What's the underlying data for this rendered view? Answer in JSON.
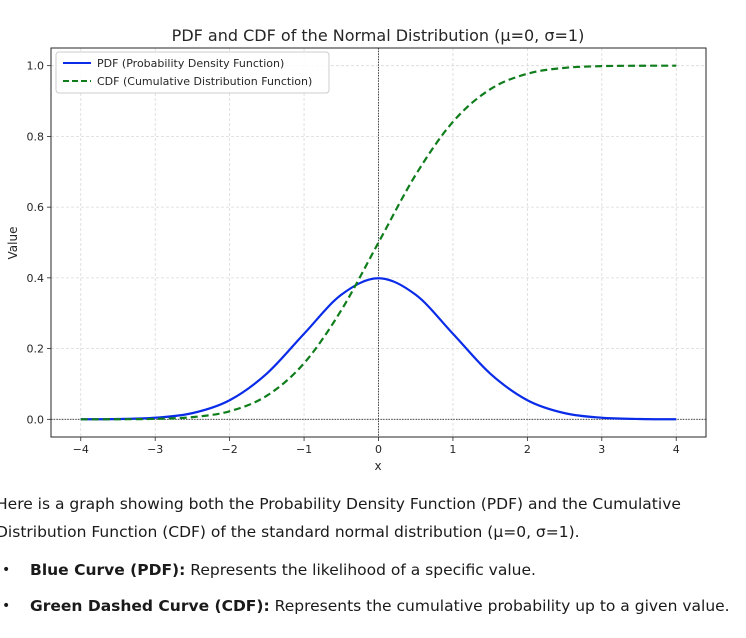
{
  "chart_data": {
    "type": "line",
    "title": "PDF and CDF of the Normal Distribution (μ=0, σ=1)",
    "xlabel": "x",
    "ylabel": "Value",
    "xlim": [
      -4.4,
      4.4
    ],
    "ylim": [
      -0.05,
      1.05
    ],
    "x_ticks": [
      -4,
      -3,
      -2,
      -1,
      0,
      1,
      2,
      3,
      4
    ],
    "x_tick_labels": [
      "−4",
      "−3",
      "−2",
      "−1",
      "0",
      "1",
      "2",
      "3",
      "4"
    ],
    "y_ticks": [
      0.0,
      0.2,
      0.4,
      0.6,
      0.8,
      1.0
    ],
    "y_tick_labels": [
      "0.0",
      "0.2",
      "0.4",
      "0.6",
      "0.8",
      "1.0"
    ],
    "grid": true,
    "legend_position": "top-left",
    "reference_lines": {
      "vertical_at_x": 0,
      "horizontal_at_y": 0
    },
    "x": [
      -4,
      -3.5,
      -3,
      -2.5,
      -2,
      -1.5,
      -1,
      -0.5,
      0,
      0.5,
      1,
      1.5,
      2,
      2.5,
      3,
      3.5,
      4
    ],
    "series": [
      {
        "name": "PDF (Probability Density Function)",
        "color": "#0a2ce8",
        "style": "solid",
        "values": [
          0.0001,
          0.0009,
          0.0044,
          0.0175,
          0.054,
          0.1295,
          0.242,
          0.3521,
          0.3989,
          0.3521,
          0.242,
          0.1295,
          0.054,
          0.0175,
          0.0044,
          0.0009,
          0.0001
        ]
      },
      {
        "name": "CDF (Cumulative Distribution Function)",
        "color": "#0f7d1c",
        "style": "dashed",
        "values": [
          0.0,
          0.0002,
          0.0013,
          0.0062,
          0.0228,
          0.0668,
          0.1587,
          0.3085,
          0.5,
          0.6915,
          0.8413,
          0.9332,
          0.9772,
          0.9938,
          0.9987,
          0.9998,
          1.0
        ]
      }
    ]
  },
  "answer": {
    "intro": "Here is a graph showing both the Probability Density Function (PDF) and the Cumulative Distribution Function (CDF) of the standard normal distribution (μ=0, σ=1).",
    "bullets": [
      {
        "term": "Blue Curve (PDF):",
        "text": " Represents the likelihood of a specific value."
      },
      {
        "term": "Green Dashed Curve (CDF):",
        "text": " Represents the cumulative probability up to a given value."
      }
    ],
    "bullet_glyph": "•"
  }
}
